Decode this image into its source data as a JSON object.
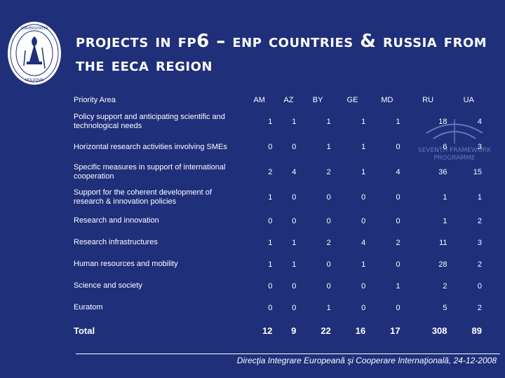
{
  "title": "Projects in FP6 – ENP countries & Russia from the EECA region",
  "seal": {
    "text": "UNIVERSITATEA DE STIINTE SI MOLDOVEI",
    "icon": "university-seal-icon"
  },
  "watermark": {
    "line1": "SEVENTH FRAMEWORK",
    "line2": "PROGRAMME",
    "icon": "fp7-logo-icon"
  },
  "table": {
    "header_label": "Priority Area",
    "columns": [
      "AM",
      "AZ",
      "BY",
      "GE",
      "MD",
      "RU",
      "UA"
    ],
    "rows": [
      {
        "label": "Policy support and anticipating scientific and technological needs",
        "values": [
          "1",
          "1",
          "1",
          "1",
          "1",
          "18",
          "4"
        ]
      },
      {
        "label": "Horizontal research activities involving SMEs",
        "values": [
          "0",
          "0",
          "1",
          "1",
          "0",
          "6",
          "3"
        ]
      },
      {
        "label": "Specific measures in support of international cooperation",
        "values": [
          "2",
          "4",
          "2",
          "1",
          "4",
          "36",
          "15"
        ]
      },
      {
        "label": "Support for the coherent development of research & innovation policies",
        "values": [
          "1",
          "0",
          "0",
          "0",
          "0",
          "1",
          "1"
        ]
      },
      {
        "label": "Research and innovation",
        "values": [
          "0",
          "0",
          "0",
          "0",
          "0",
          "1",
          "2"
        ]
      },
      {
        "label": "Research infrastructures",
        "values": [
          "1",
          "1",
          "2",
          "4",
          "2",
          "11",
          "3"
        ]
      },
      {
        "label": "Human resources and mobility",
        "values": [
          "1",
          "1",
          "0",
          "1",
          "0",
          "28",
          "2"
        ]
      },
      {
        "label": "Science and society",
        "values": [
          "0",
          "0",
          "0",
          "0",
          "1",
          "2",
          "0"
        ]
      },
      {
        "label": "Euratom",
        "values": [
          "0",
          "0",
          "1",
          "0",
          "0",
          "5",
          "2"
        ]
      }
    ],
    "total": {
      "label": "Total",
      "values": [
        "12",
        "9",
        "22",
        "16",
        "17",
        "308",
        "89"
      ]
    }
  },
  "footer": "Direcţia Integrare Europeană şi Cooperare Internaţională, 24-12-2008",
  "colors": {
    "background": "#1f2f7a",
    "text": "#ffffff"
  }
}
